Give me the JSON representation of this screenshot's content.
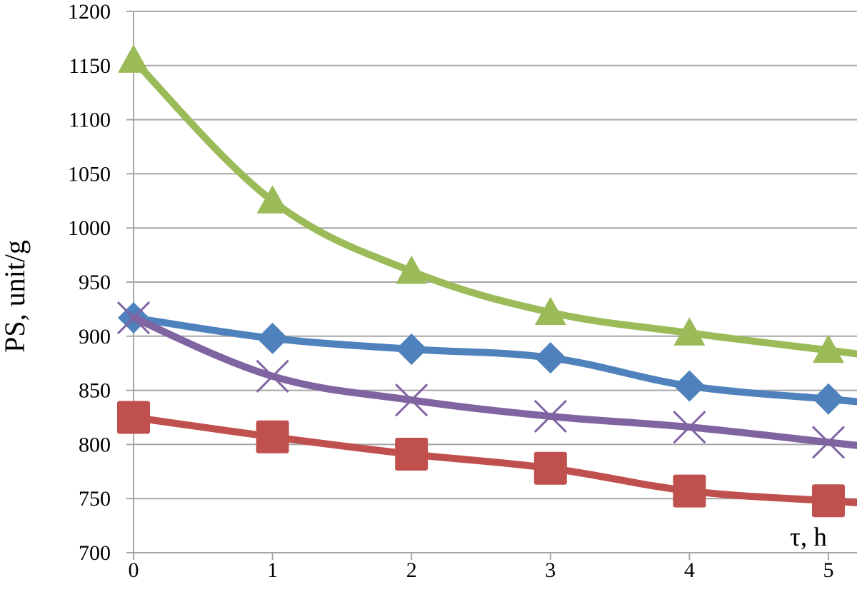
{
  "chart_data": {
    "type": "line",
    "title": "",
    "xlabel": "τ, h",
    "ylabel": "PS, unit/g",
    "x": [
      0,
      1,
      2,
      3,
      4,
      5
    ],
    "xlim": [
      0,
      5
    ],
    "ylim": [
      700,
      1200
    ],
    "yticks": [
      700,
      750,
      800,
      850,
      900,
      950,
      1000,
      1050,
      1100,
      1150,
      1200
    ],
    "grid": true,
    "legend": "none",
    "series": [
      {
        "marker": "triangle",
        "color": "#9BBB59",
        "values": [
          1155,
          1025,
          960,
          922,
          903,
          887
        ]
      },
      {
        "marker": "diamond",
        "color": "#4F81BD",
        "values": [
          917,
          898,
          888,
          880,
          854,
          842
        ]
      },
      {
        "marker": "x",
        "color": "#8064A2",
        "values": [
          917,
          863,
          841,
          826,
          816,
          802
        ]
      },
      {
        "marker": "square",
        "color": "#C0504D",
        "values": [
          825,
          807,
          791,
          778,
          757,
          748
        ]
      }
    ]
  }
}
